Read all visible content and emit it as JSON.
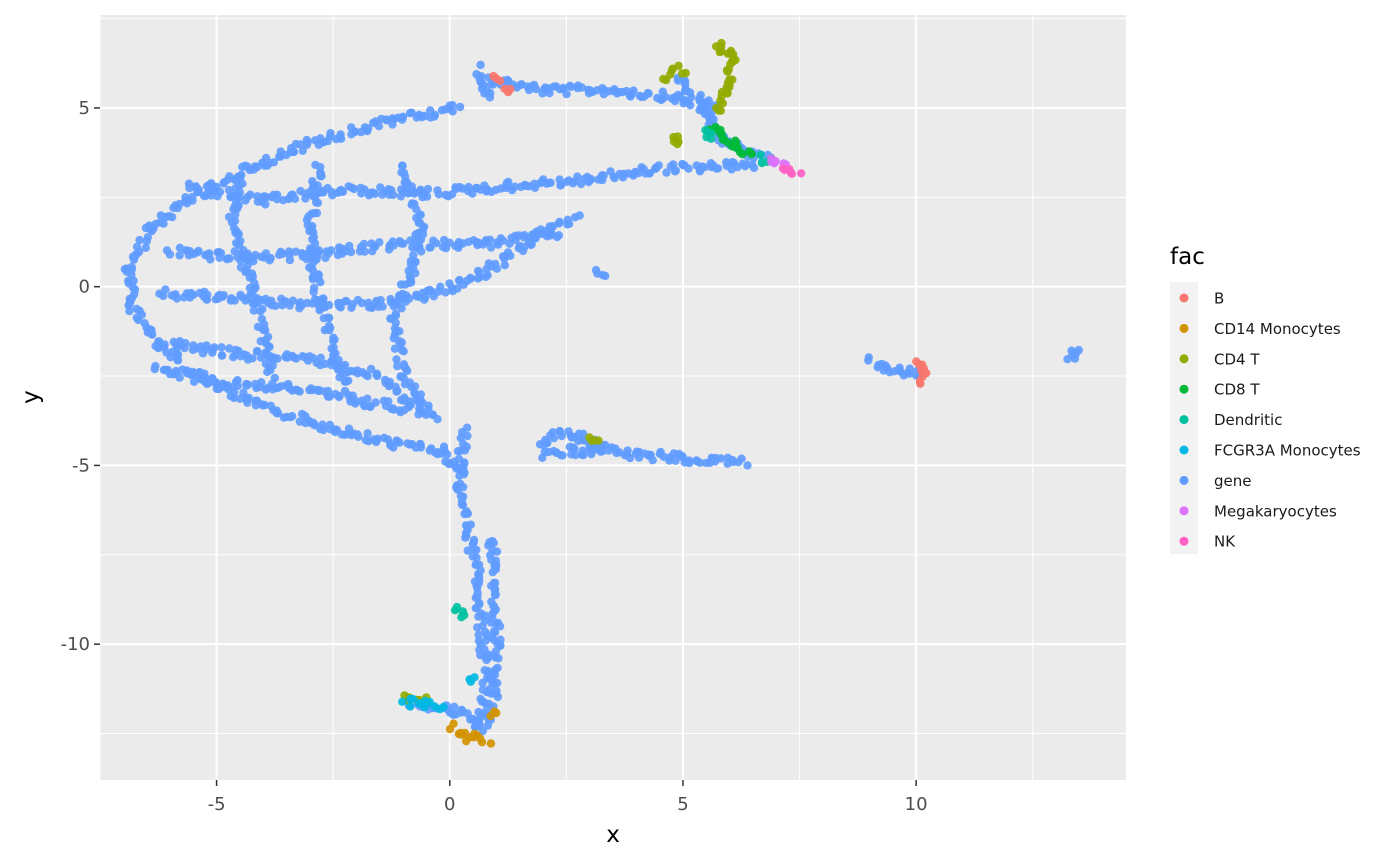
{
  "chart_data": {
    "type": "scatter",
    "title": "",
    "xlabel": "x",
    "ylabel": "y",
    "xlim": [
      -7.5,
      14.5
    ],
    "ylim": [
      -13.8,
      7.6
    ],
    "x_ticks": [
      -5,
      0,
      5,
      10
    ],
    "x_tick_labels": [
      "-5",
      "0",
      "5",
      "10"
    ],
    "y_ticks": [
      5,
      0,
      -5,
      -10
    ],
    "y_tick_labels": [
      "5",
      "0",
      "-5",
      "-10"
    ],
    "grid": true,
    "background": "#ebebeb",
    "legend": {
      "title": "fac",
      "position": "right",
      "entries": [
        {
          "label": "B",
          "color": "#F8766D"
        },
        {
          "label": "CD14 Monocytes",
          "color": "#D39200"
        },
        {
          "label": "CD4 T",
          "color": "#93AA00"
        },
        {
          "label": "CD8 T",
          "color": "#00BA38"
        },
        {
          "label": "Dendritic",
          "color": "#00C19F"
        },
        {
          "label": "FCGR3A Monocytes",
          "color": "#00B9E3"
        },
        {
          "label": "gene",
          "color": "#619CFF"
        },
        {
          "label": "Megakaryocytes",
          "color": "#DB72FB"
        },
        {
          "label": "NK",
          "color": "#FF61C3"
        }
      ]
    },
    "series": [
      {
        "name": "gene",
        "color": "#619CFF",
        "paths": [
          [
            [
              0.8,
              5.8
            ],
            [
              2.0,
              5.5
            ],
            [
              3.5,
              5.5
            ],
            [
              4.8,
              5.3
            ],
            [
              5.6,
              4.9
            ]
          ],
          [
            [
              0.2,
              5.0
            ],
            [
              -1.5,
              4.6
            ],
            [
              -3.0,
              4.0
            ],
            [
              -4.3,
              3.3
            ],
            [
              -5.5,
              2.5
            ],
            [
              -6.4,
              1.6
            ],
            [
              -6.9,
              0.5
            ],
            [
              -6.8,
              -0.6
            ],
            [
              -6.3,
              -1.6
            ],
            [
              -5.5,
              -2.4
            ],
            [
              -4.3,
              -3.2
            ],
            [
              -3.0,
              -3.8
            ],
            [
              -1.6,
              -4.3
            ],
            [
              -0.2,
              -4.6
            ],
            [
              0.3,
              -5.2
            ]
          ],
          [
            [
              -5.6,
              2.8
            ],
            [
              -4.0,
              2.4
            ],
            [
              -2.3,
              2.7
            ],
            [
              -0.5,
              2.6
            ],
            [
              1.2,
              2.8
            ],
            [
              3.0,
              3.0
            ],
            [
              4.5,
              3.3
            ],
            [
              6.5,
              3.4
            ]
          ],
          [
            [
              -6.0,
              1.0
            ],
            [
              -4.5,
              0.8
            ],
            [
              -2.8,
              0.9
            ],
            [
              -1.0,
              1.2
            ],
            [
              0.8,
              1.2
            ],
            [
              2.3,
              1.5
            ]
          ],
          [
            [
              -6.2,
              -0.2
            ],
            [
              -4.8,
              -0.3
            ],
            [
              -3.2,
              -0.5
            ],
            [
              -1.5,
              -0.5
            ],
            [
              -0.6,
              -0.3
            ],
            [
              0.6,
              0.3
            ],
            [
              1.8,
              1.3
            ],
            [
              2.7,
              2.0
            ]
          ],
          [
            [
              -6.0,
              -1.6
            ],
            [
              -4.5,
              -1.9
            ],
            [
              -3.0,
              -2.0
            ],
            [
              -1.5,
              -2.5
            ],
            [
              -0.8,
              -3.3
            ],
            [
              -0.3,
              -3.7
            ]
          ],
          [
            [
              -6.3,
              -2.3
            ],
            [
              -4.9,
              -2.7
            ],
            [
              -3.5,
              -2.8
            ],
            [
              -2.0,
              -3.2
            ],
            [
              -1.0,
              -3.4
            ]
          ],
          [
            [
              -1.0,
              3.4
            ],
            [
              -0.6,
              1.8
            ],
            [
              -0.8,
              0.4
            ],
            [
              -1.2,
              -0.8
            ],
            [
              -1.0,
              -2.4
            ],
            [
              -0.5,
              -3.5
            ]
          ],
          [
            [
              -2.8,
              3.4
            ],
            [
              -3.0,
              1.6
            ],
            [
              -2.9,
              0.2
            ],
            [
              -2.6,
              -1.2
            ],
            [
              -2.2,
              -2.8
            ]
          ],
          [
            [
              -4.5,
              3.0
            ],
            [
              -4.7,
              1.8
            ],
            [
              -4.3,
              0.2
            ],
            [
              -4.0,
              -1.2
            ],
            [
              -3.8,
              -2.6
            ]
          ],
          [
            [
              0.3,
              -4.0
            ],
            [
              0.2,
              -5.5
            ],
            [
              0.4,
              -6.8
            ],
            [
              0.6,
              -8.3
            ],
            [
              0.7,
              -9.8
            ],
            [
              0.8,
              -11.1
            ],
            [
              0.6,
              -12.2
            ]
          ],
          [
            [
              0.9,
              -7.0
            ],
            [
              0.95,
              -8.5
            ],
            [
              1.0,
              -10.0
            ],
            [
              1.0,
              -11.3
            ],
            [
              0.8,
              -12.1
            ]
          ],
          [
            [
              -0.9,
              -11.6
            ],
            [
              -0.4,
              -11.7
            ],
            [
              0.2,
              -11.9
            ],
            [
              0.5,
              -12.2
            ],
            [
              0.8,
              -12.4
            ]
          ],
          [
            [
              0.6,
              6.1
            ],
            [
              0.7,
              5.6
            ],
            [
              0.8,
              5.3
            ]
          ],
          [
            [
              4.9,
              5.9
            ],
            [
              5.1,
              5.4
            ],
            [
              5.5,
              5.2
            ],
            [
              5.6,
              4.6
            ]
          ],
          [
            [
              5.6,
              5.0
            ],
            [
              5.8,
              4.2
            ],
            [
              6.2,
              3.8
            ],
            [
              6.8,
              3.6
            ]
          ],
          [
            [
              1.9,
              -4.4
            ],
            [
              2.4,
              -4.1
            ],
            [
              2.8,
              -4.2
            ],
            [
              3.3,
              -4.5
            ],
            [
              4.0,
              -4.7
            ],
            [
              5.0,
              -4.8
            ],
            [
              6.3,
              -4.9
            ]
          ],
          [
            [
              2.0,
              -4.7
            ],
            [
              2.6,
              -4.6
            ],
            [
              3.2,
              -4.6
            ]
          ],
          [
            [
              9.0,
              -2.0
            ],
            [
              9.4,
              -2.3
            ],
            [
              9.9,
              -2.4
            ],
            [
              10.1,
              -2.4
            ]
          ],
          [
            [
              13.2,
              -2.0
            ],
            [
              13.5,
              -1.8
            ]
          ],
          [
            [
              3.1,
              0.35
            ],
            [
              3.3,
              0.25
            ]
          ]
        ]
      },
      {
        "name": "CD4 T",
        "color": "#93AA00",
        "paths": [
          [
            [
              5.7,
              6.6
            ],
            [
              5.9,
              6.7
            ],
            [
              6.1,
              6.5
            ],
            [
              6.0,
              6.0
            ],
            [
              5.9,
              5.4
            ],
            [
              5.7,
              4.9
            ]
          ],
          [
            [
              4.6,
              5.9
            ],
            [
              5.0,
              6.1
            ]
          ],
          [
            [
              4.8,
              4.2
            ],
            [
              5.0,
              4.0
            ]
          ],
          [
            [
              -0.9,
              -11.5
            ],
            [
              -0.6,
              -11.6
            ]
          ],
          [
            [
              2.9,
              -4.2
            ],
            [
              3.1,
              -4.3
            ]
          ]
        ]
      },
      {
        "name": "CD8 T",
        "color": "#00BA38",
        "paths": [
          [
            [
              5.5,
              4.5
            ],
            [
              5.8,
              4.3
            ],
            [
              6.1,
              4.0
            ],
            [
              6.5,
              3.7
            ]
          ]
        ]
      },
      {
        "name": "Dendritic",
        "color": "#00C19F",
        "paths": [
          [
            [
              0.2,
              -9.0
            ],
            [
              0.3,
              -9.3
            ]
          ],
          [
            [
              5.4,
              4.4
            ],
            [
              5.6,
              4.2
            ]
          ],
          [
            [
              6.7,
              3.6
            ],
            [
              6.9,
              3.5
            ]
          ]
        ]
      },
      {
        "name": "FCGR3A Monocytes",
        "color": "#00B9E3",
        "paths": [
          [
            [
              -1.0,
              -11.6
            ],
            [
              -0.6,
              -11.7
            ],
            [
              -0.2,
              -11.8
            ]
          ],
          [
            [
              0.5,
              -10.9
            ],
            [
              0.55,
              -11.0
            ]
          ]
        ]
      },
      {
        "name": "CD14 Monocytes",
        "color": "#D39200",
        "paths": [
          [
            [
              0.0,
              -12.3
            ],
            [
              0.4,
              -12.6
            ],
            [
              0.8,
              -12.7
            ]
          ],
          [
            [
              0.9,
              -12.0
            ],
            [
              0.95,
              -12.0
            ]
          ]
        ]
      },
      {
        "name": "B",
        "color": "#F8766D",
        "paths": [
          [
            [
              10.0,
              -2.1
            ],
            [
              10.15,
              -2.4
            ],
            [
              10.05,
              -2.7
            ]
          ],
          [
            [
              1.2,
              5.6
            ],
            [
              1.25,
              5.5
            ]
          ],
          [
            [
              0.9,
              5.9
            ],
            [
              1.0,
              5.8
            ]
          ]
        ]
      },
      {
        "name": "Megakaryocytes",
        "color": "#DB72FB",
        "paths": [
          [
            [
              6.9,
              3.55
            ],
            [
              7.2,
              3.4
            ]
          ]
        ]
      },
      {
        "name": "NK",
        "color": "#FF61C3",
        "paths": [
          [
            [
              7.2,
              3.4
            ],
            [
              7.45,
              3.2
            ]
          ]
        ]
      }
    ]
  }
}
